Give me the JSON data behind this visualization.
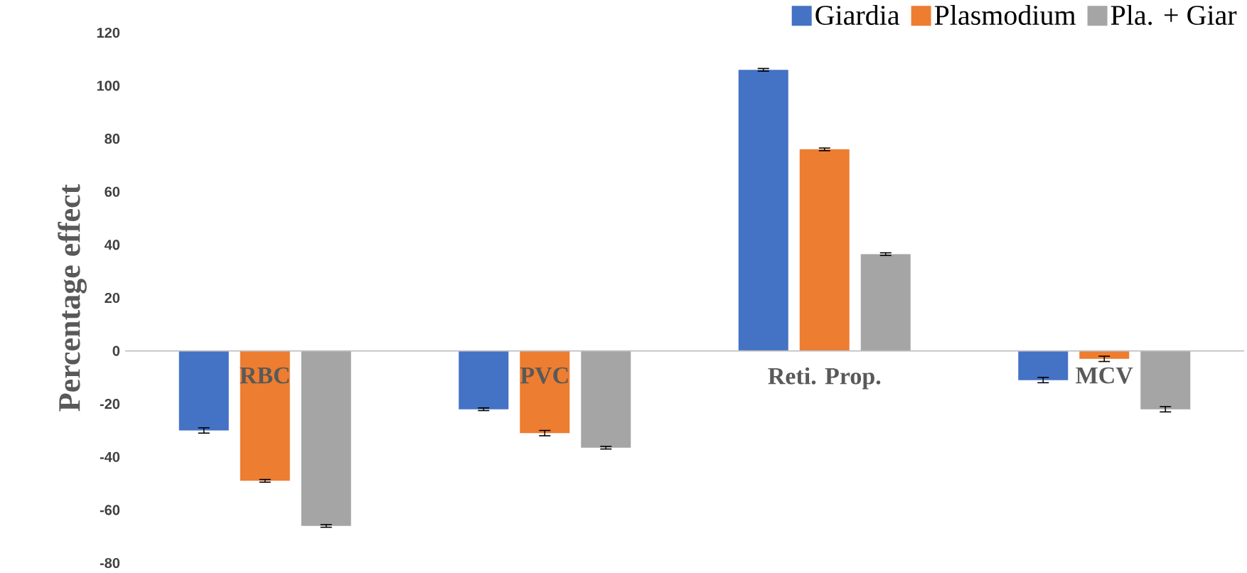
{
  "chart_data": {
    "type": "bar",
    "ylabel": "Percentage effect",
    "categories": [
      "RBC",
      "PVC",
      "Reti. Prop.",
      "MCV"
    ],
    "series": [
      {
        "name": "Giardia",
        "color": "#4472c4",
        "values": [
          -30,
          -22,
          106,
          -11
        ],
        "errors": [
          1,
          0.5,
          0.5,
          1
        ]
      },
      {
        "name": "Plasmodium",
        "color": "#ed7d31",
        "values": [
          -49,
          -31,
          76,
          -3
        ],
        "errors": [
          0.5,
          1,
          0.5,
          1
        ]
      },
      {
        "name": "Pla. + Giar",
        "color": "#a5a5a5",
        "values": [
          -66,
          -36.5,
          36.5,
          -22
        ],
        "errors": [
          0.5,
          0.5,
          0.5,
          1
        ]
      }
    ],
    "ylim": [
      -80,
      120
    ],
    "yticks": [
      -80,
      -60,
      -40,
      -20,
      0,
      20,
      40,
      60,
      80,
      100,
      120
    ],
    "legend": "top right",
    "grid": false
  }
}
